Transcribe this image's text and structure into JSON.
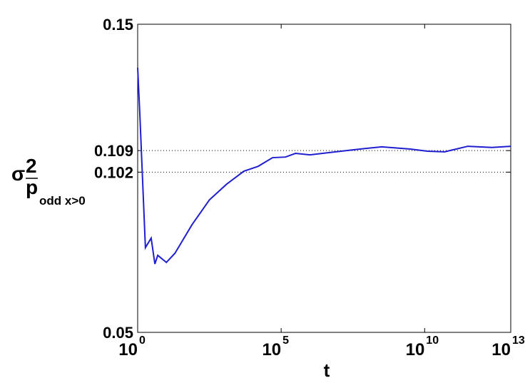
{
  "chart_data": {
    "type": "line",
    "x_label": "t",
    "y_label": {
      "symbol": "σ",
      "superscript": "2",
      "subscript": "p",
      "sub_subscript": "odd x>0"
    },
    "x": [
      1,
      1.19,
      1.86,
      2.95,
      3.98,
      5.01,
      10,
      20,
      79,
      316,
      1259,
      5012,
      15849,
      50119,
      141254,
      316228,
      1000000,
      7900000,
      56000000,
      320000000,
      3200000000,
      12600000000,
      50000000000,
      320000000000,
      2200000000000,
      10000000000000
    ],
    "series": [
      {
        "color": "#1f1fd0",
        "values": [
          0.1359,
          0.1208,
          0.0775,
          0.0806,
          0.0722,
          0.075,
          0.0727,
          0.0757,
          0.085,
          0.093,
          0.0981,
          0.1023,
          0.1039,
          0.1067,
          0.1069,
          0.1081,
          0.1076,
          0.1086,
          0.1095,
          0.1102,
          0.1095,
          0.1088,
          0.1086,
          0.1104,
          0.11,
          0.1104
        ]
      }
    ],
    "xlim": [
      1,
      10000000000000
    ],
    "ylim": [
      0.05,
      0.15
    ],
    "x_log": true,
    "xticks": [
      {
        "value": 1,
        "label": {
          "base": "10",
          "exponent": "0"
        }
      },
      {
        "value": 100000,
        "label": {
          "base": "10",
          "exponent": "5"
        }
      },
      {
        "value": 10000000000,
        "label": {
          "base": "10",
          "exponent": "10"
        }
      },
      {
        "value": 10000000000000,
        "label": {
          "base": "10",
          "exponent": "13"
        }
      }
    ],
    "yticks": [
      0.05,
      0.102,
      0.109,
      0.15
    ],
    "reference_lines": [
      0.109,
      0.102
    ]
  }
}
